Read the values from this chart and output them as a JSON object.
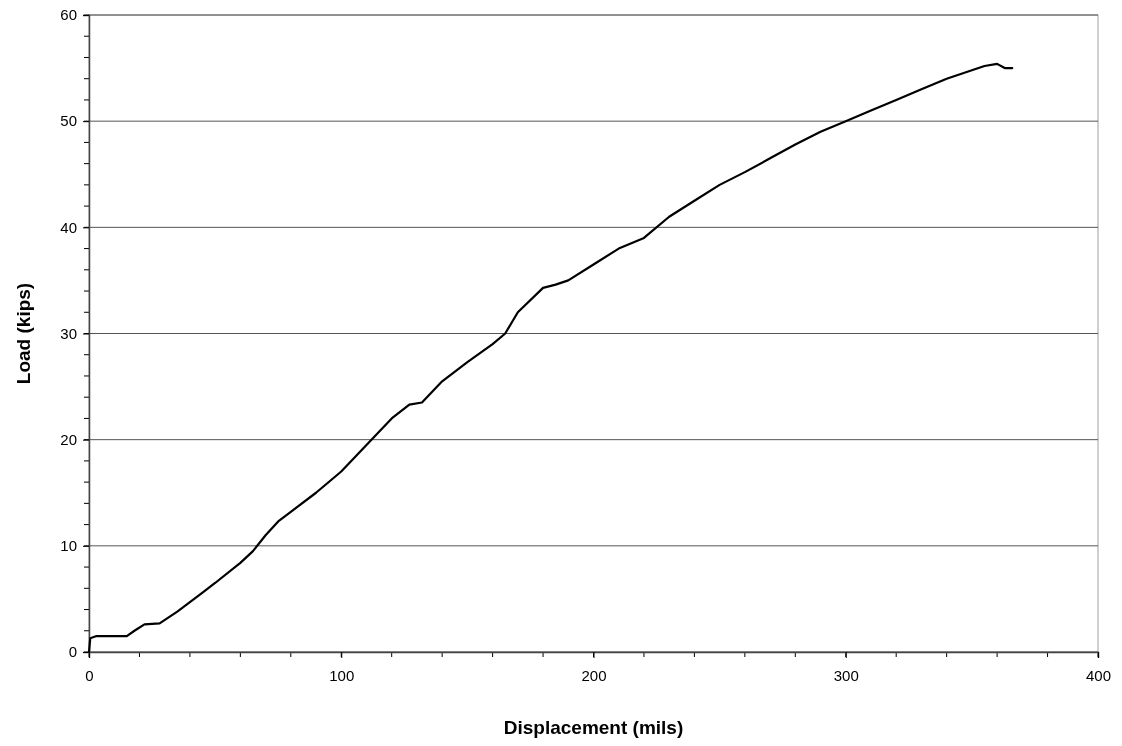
{
  "chart_data": {
    "type": "line",
    "xlabel": "Displacement (mils)",
    "ylabel": "Load (kips)",
    "x": [
      0,
      0.5,
      3,
      15,
      18,
      22,
      28,
      35,
      45,
      50,
      60,
      65,
      70,
      75,
      80,
      90,
      100,
      110,
      120,
      127,
      132,
      140,
      150,
      160,
      165,
      170,
      180,
      185,
      190,
      200,
      210,
      220,
      230,
      240,
      250,
      260,
      270,
      280,
      290,
      300,
      310,
      320,
      330,
      340,
      350,
      355,
      360,
      363,
      366
    ],
    "series": [
      {
        "color": "#000000",
        "values": [
          0,
          1.3,
          1.5,
          1.5,
          2,
          2.6,
          2.7,
          3.8,
          5.6,
          6.5,
          8.4,
          9.5,
          11,
          12.3,
          13.2,
          15,
          17,
          19.5,
          22,
          23.3,
          23.5,
          25.5,
          27.3,
          29,
          30,
          32,
          34.3,
          34.6,
          35,
          36.5,
          38,
          39,
          41,
          42.5,
          44,
          45.2,
          46.5,
          47.8,
          49,
          50,
          51,
          52,
          53,
          54,
          54.8,
          55.2,
          55.4,
          55,
          55
        ]
      }
    ],
    "xlim": [
      0,
      400
    ],
    "xticks": [
      0,
      100,
      200,
      300,
      400
    ],
    "ylim": [
      0,
      60
    ],
    "yticks": [
      0,
      10,
      20,
      30,
      40,
      50,
      60
    ],
    "grid": "y",
    "marker": "none",
    "line_style": "solid"
  }
}
